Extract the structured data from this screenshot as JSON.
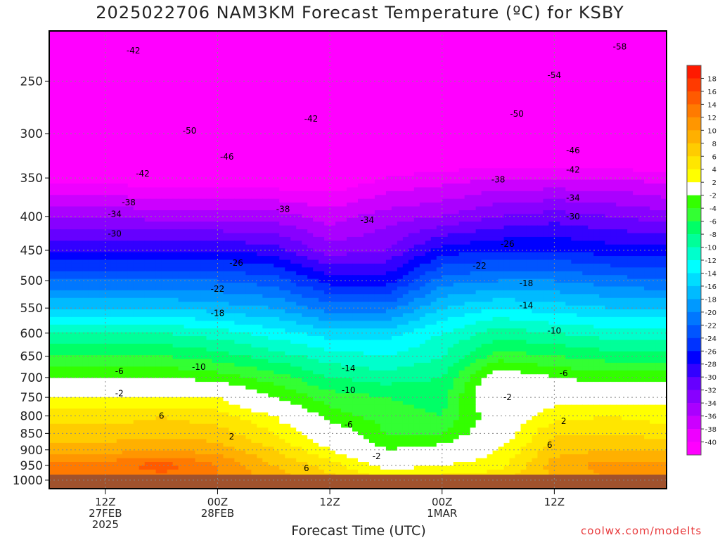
{
  "title": "2025022706 NAM3KM Forecast Temperature (ºC) for KSBY",
  "xlabel": "Forecast Time (UTC)",
  "credit": "coolwx.com/modelts",
  "chart_data": {
    "type": "heatmap",
    "title": "2025022706 NAM3KM Forecast Temperature (ºC) for KSBY",
    "xlabel": "Forecast Time (UTC)",
    "ylabel": "",
    "y_scale": "log",
    "y_reversed": true,
    "ylim": [
      1030,
      210
    ],
    "xlim": [
      "2025-02-27T06:00Z",
      "2025-03-02T00:00Z"
    ],
    "yticks": [
      250,
      300,
      350,
      400,
      450,
      500,
      550,
      600,
      650,
      700,
      750,
      800,
      850,
      900,
      950,
      1000
    ],
    "xticks": [
      {
        "time": "2025-02-27T12:00Z",
        "lines": [
          "12Z",
          "27FEB",
          "2025"
        ]
      },
      {
        "time": "2025-02-28T00:00Z",
        "lines": [
          "00Z",
          "28FEB"
        ]
      },
      {
        "time": "2025-02-28T12:00Z",
        "lines": [
          "12Z"
        ]
      },
      {
        "time": "2025-03-01T00:00Z",
        "lines": [
          "00Z",
          "1MAR"
        ]
      },
      {
        "time": "2025-03-01T12:00Z",
        "lines": [
          "12Z"
        ]
      }
    ],
    "grid": true,
    "legend_position": "right",
    "colorbar": {
      "labels": [
        "18",
        "16",
        "14",
        "12",
        "10",
        "8",
        "6",
        "4",
        "2",
        "-2",
        "-4",
        "-6",
        "-8",
        "-10",
        "-12",
        "-14",
        "-16",
        "-18",
        "-20",
        "-22",
        "-24",
        "-26",
        "-28",
        "-30",
        "-32",
        "-34",
        "-36",
        "-38",
        "-40"
      ],
      "colors": [
        "#ff1a00",
        "#ff3a00",
        "#ff5a00",
        "#ff7a00",
        "#ff9600",
        "#ffb000",
        "#ffcc00",
        "#ffe600",
        "#ffff00",
        "#ffffff",
        "#33ff00",
        "#33ff33",
        "#00ff66",
        "#00ff99",
        "#00ffcc",
        "#00ffff",
        "#00ddff",
        "#00bbff",
        "#0099ff",
        "#0077ff",
        "#0055ff",
        "#0033ff",
        "#0000ff",
        "#3300ff",
        "#6600ff",
        "#8800ff",
        "#aa00ff",
        "#cc00ff",
        "#ee00ff",
        "#ff00ff"
      ]
    },
    "series": [
      {
        "hours": [
          6,
          12,
          18,
          24,
          30,
          36,
          42,
          48,
          54,
          60,
          66
        ],
        "profiles": [
          [
            {
              "p": 1000,
              "t": 12
            },
            {
              "p": 950,
              "t": 13
            },
            {
              "p": 900,
              "t": 9
            },
            {
              "p": 850,
              "t": 7
            },
            {
              "p": 800,
              "t": 5
            },
            {
              "p": 750,
              "t": 2
            },
            {
              "p": 700,
              "t": -2
            },
            {
              "p": 650,
              "t": -6
            },
            {
              "p": 600,
              "t": -10
            },
            {
              "p": 550,
              "t": -16
            },
            {
              "p": 500,
              "t": -22
            },
            {
              "p": 450,
              "t": -28
            },
            {
              "p": 400,
              "t": -34
            },
            {
              "p": 350,
              "t": -41
            },
            {
              "p": 300,
              "t": -47
            },
            {
              "p": 250,
              "t": -52
            }
          ],
          [
            {
              "p": 1000,
              "t": 13
            },
            {
              "p": 950,
              "t": 15
            },
            {
              "p": 900,
              "t": 10
            },
            {
              "p": 850,
              "t": 7
            },
            {
              "p": 800,
              "t": 6
            },
            {
              "p": 750,
              "t": 2
            },
            {
              "p": 700,
              "t": -2
            },
            {
              "p": 650,
              "t": -6
            },
            {
              "p": 600,
              "t": -10
            },
            {
              "p": 550,
              "t": -16
            },
            {
              "p": 500,
              "t": -22
            },
            {
              "p": 450,
              "t": -28
            },
            {
              "p": 400,
              "t": -35
            },
            {
              "p": 350,
              "t": -42
            },
            {
              "p": 300,
              "t": -48
            },
            {
              "p": 250,
              "t": -52
            }
          ],
          [
            {
              "p": 1000,
              "t": 12
            },
            {
              "p": 950,
              "t": 12
            },
            {
              "p": 900,
              "t": 9
            },
            {
              "p": 850,
              "t": 7
            },
            {
              "p": 800,
              "t": 5
            },
            {
              "p": 750,
              "t": 2
            },
            {
              "p": 700,
              "t": -3
            },
            {
              "p": 650,
              "t": -7
            },
            {
              "p": 600,
              "t": -11
            },
            {
              "p": 550,
              "t": -17
            },
            {
              "p": 500,
              "t": -22
            },
            {
              "p": 450,
              "t": -28
            },
            {
              "p": 400,
              "t": -35
            },
            {
              "p": 350,
              "t": -42
            },
            {
              "p": 300,
              "t": -49
            },
            {
              "p": 250,
              "t": -53
            }
          ],
          [
            {
              "p": 1000,
              "t": 9
            },
            {
              "p": 950,
              "t": 8
            },
            {
              "p": 900,
              "t": 6
            },
            {
              "p": 850,
              "t": 4
            },
            {
              "p": 800,
              "t": 2
            },
            {
              "p": 750,
              "t": -2
            },
            {
              "p": 700,
              "t": -5
            },
            {
              "p": 650,
              "t": -9
            },
            {
              "p": 600,
              "t": -13
            },
            {
              "p": 550,
              "t": -18
            },
            {
              "p": 500,
              "t": -23
            },
            {
              "p": 450,
              "t": -29
            },
            {
              "p": 400,
              "t": -35
            },
            {
              "p": 350,
              "t": -42
            },
            {
              "p": 300,
              "t": -48
            },
            {
              "p": 250,
              "t": -53
            }
          ],
          [
            {
              "p": 1000,
              "t": 7
            },
            {
              "p": 950,
              "t": 5
            },
            {
              "p": 900,
              "t": 2
            },
            {
              "p": 850,
              "t": 0
            },
            {
              "p": 800,
              "t": -3
            },
            {
              "p": 750,
              "t": -5
            },
            {
              "p": 700,
              "t": -8
            },
            {
              "p": 650,
              "t": -11
            },
            {
              "p": 600,
              "t": -15
            },
            {
              "p": 550,
              "t": -21
            },
            {
              "p": 500,
              "t": -27
            },
            {
              "p": 450,
              "t": -33
            },
            {
              "p": 400,
              "t": -37
            },
            {
              "p": 350,
              "t": -42
            },
            {
              "p": 300,
              "t": -46
            },
            {
              "p": 250,
              "t": -50
            }
          ],
          [
            {
              "p": 1000,
              "t": 4
            },
            {
              "p": 950,
              "t": 1
            },
            {
              "p": 900,
              "t": -2
            },
            {
              "p": 850,
              "t": -4
            },
            {
              "p": 800,
              "t": -5
            },
            {
              "p": 750,
              "t": -6
            },
            {
              "p": 700,
              "t": -9
            },
            {
              "p": 650,
              "t": -12
            },
            {
              "p": 600,
              "t": -15
            },
            {
              "p": 550,
              "t": -21
            },
            {
              "p": 500,
              "t": -27
            },
            {
              "p": 450,
              "t": -32
            },
            {
              "p": 400,
              "t": -35
            },
            {
              "p": 350,
              "t": -40
            },
            {
              "p": 300,
              "t": -44
            },
            {
              "p": 250,
              "t": -50
            }
          ],
          [
            {
              "p": 1000,
              "t": 5
            },
            {
              "p": 950,
              "t": 2
            },
            {
              "p": 900,
              "t": -1
            },
            {
              "p": 850,
              "t": -4
            },
            {
              "p": 800,
              "t": -6
            },
            {
              "p": 750,
              "t": -7
            },
            {
              "p": 700,
              "t": -8
            },
            {
              "p": 650,
              "t": -10
            },
            {
              "p": 600,
              "t": -12
            },
            {
              "p": 550,
              "t": -16
            },
            {
              "p": 500,
              "t": -21
            },
            {
              "p": 450,
              "t": -27
            },
            {
              "p": 400,
              "t": -34
            },
            {
              "p": 350,
              "t": -39
            },
            {
              "p": 300,
              "t": -46
            },
            {
              "p": 250,
              "t": -52
            }
          ],
          [
            {
              "p": 1000,
              "t": 6
            },
            {
              "p": 950,
              "t": 3
            },
            {
              "p": 900,
              "t": 2
            },
            {
              "p": 850,
              "t": 0
            },
            {
              "p": 800,
              "t": 0
            },
            {
              "p": 750,
              "t": 2
            },
            {
              "p": 700,
              "t": 0
            },
            {
              "p": 650,
              "t": -5
            },
            {
              "p": 600,
              "t": -9
            },
            {
              "p": 550,
              "t": -14
            },
            {
              "p": 500,
              "t": -20
            },
            {
              "p": 450,
              "t": -26
            },
            {
              "p": 400,
              "t": -32
            },
            {
              "p": 350,
              "t": -38
            },
            {
              "p": 300,
              "t": -46
            },
            {
              "p": 250,
              "t": -54
            }
          ],
          [
            {
              "p": 1000,
              "t": 8
            },
            {
              "p": 950,
              "t": 9
            },
            {
              "p": 900,
              "t": 7
            },
            {
              "p": 850,
              "t": 6
            },
            {
              "p": 800,
              "t": 3
            },
            {
              "p": 750,
              "t": 1
            },
            {
              "p": 700,
              "t": -2
            },
            {
              "p": 650,
              "t": -6
            },
            {
              "p": 600,
              "t": -10
            },
            {
              "p": 550,
              "t": -15
            },
            {
              "p": 500,
              "t": -20
            },
            {
              "p": 450,
              "t": -26
            },
            {
              "p": 400,
              "t": -31
            },
            {
              "p": 350,
              "t": -38
            },
            {
              "p": 300,
              "t": -46
            },
            {
              "p": 250,
              "t": -55
            }
          ],
          [
            {
              "p": 1000,
              "t": 10
            },
            {
              "p": 950,
              "t": 11
            },
            {
              "p": 900,
              "t": 8
            },
            {
              "p": 850,
              "t": 6
            },
            {
              "p": 800,
              "t": 4
            },
            {
              "p": 750,
              "t": 1
            },
            {
              "p": 700,
              "t": -3
            },
            {
              "p": 650,
              "t": -7
            },
            {
              "p": 600,
              "t": -11
            },
            {
              "p": 550,
              "t": -16
            },
            {
              "p": 500,
              "t": -21
            },
            {
              "p": 450,
              "t": -27
            },
            {
              "p": 400,
              "t": -32
            },
            {
              "p": 350,
              "t": -38
            },
            {
              "p": 300,
              "t": -47
            },
            {
              "p": 250,
              "t": -56
            }
          ],
          [
            {
              "p": 1000,
              "t": 12
            },
            {
              "p": 950,
              "t": 11
            },
            {
              "p": 900,
              "t": 8
            },
            {
              "p": 850,
              "t": 5
            },
            {
              "p": 800,
              "t": 3
            },
            {
              "p": 750,
              "t": 1
            },
            {
              "p": 700,
              "t": -3
            },
            {
              "p": 650,
              "t": -7
            },
            {
              "p": 600,
              "t": -11
            },
            {
              "p": 550,
              "t": -16
            },
            {
              "p": 500,
              "t": -22
            },
            {
              "p": 450,
              "t": -27
            },
            {
              "p": 400,
              "t": -33
            },
            {
              "p": 350,
              "t": -39
            },
            {
              "p": 300,
              "t": -48
            },
            {
              "p": 250,
              "t": -56
            }
          ]
        ]
      }
    ],
    "contour_labels": [
      {
        "text": "-42",
        "h": 9,
        "p": 225
      },
      {
        "text": "-50",
        "h": 15,
        "p": 297
      },
      {
        "text": "-42",
        "h": 10,
        "p": 345
      },
      {
        "text": "-46",
        "h": 19,
        "p": 325
      },
      {
        "text": "-38",
        "h": 8.5,
        "p": 381
      },
      {
        "text": "-34",
        "h": 7,
        "p": 397
      },
      {
        "text": "-30",
        "h": 7,
        "p": 425
      },
      {
        "text": "-26",
        "h": 20,
        "p": 470
      },
      {
        "text": "-22",
        "h": 18,
        "p": 515
      },
      {
        "text": "-18",
        "h": 18,
        "p": 560
      },
      {
        "text": "-10",
        "h": 16,
        "p": 675
      },
      {
        "text": "-6",
        "h": 7.5,
        "p": 685
      },
      {
        "text": "-2",
        "h": 7.5,
        "p": 740
      },
      {
        "text": "6",
        "h": 12,
        "p": 800
      },
      {
        "text": "2",
        "h": 19.5,
        "p": 860
      },
      {
        "text": "-42",
        "h": 28,
        "p": 285
      },
      {
        "text": "-38",
        "h": 25,
        "p": 390
      },
      {
        "text": "-34",
        "h": 34,
        "p": 405
      },
      {
        "text": "-14",
        "h": 32,
        "p": 678
      },
      {
        "text": "-10",
        "h": 32,
        "p": 732
      },
      {
        "text": "-6",
        "h": 32,
        "p": 825
      },
      {
        "text": "-2",
        "h": 35,
        "p": 920
      },
      {
        "text": "6",
        "h": 27.5,
        "p": 960
      },
      {
        "text": "-38",
        "h": 48,
        "p": 352
      },
      {
        "text": "-54",
        "h": 54,
        "p": 245
      },
      {
        "text": "-50",
        "h": 50,
        "p": 280
      },
      {
        "text": "-46",
        "h": 56,
        "p": 318
      },
      {
        "text": "-42",
        "h": 56,
        "p": 340
      },
      {
        "text": "-58",
        "h": 61,
        "p": 222
      },
      {
        "text": "-34",
        "h": 56,
        "p": 375
      },
      {
        "text": "-30",
        "h": 56,
        "p": 400
      },
      {
        "text": "-26",
        "h": 49,
        "p": 440
      },
      {
        "text": "-22",
        "h": 46,
        "p": 475
      },
      {
        "text": "-18",
        "h": 51,
        "p": 505
      },
      {
        "text": "-14",
        "h": 51,
        "p": 545
      },
      {
        "text": "-10",
        "h": 54,
        "p": 595
      },
      {
        "text": "-6",
        "h": 55,
        "p": 690
      },
      {
        "text": "-2",
        "h": 49,
        "p": 750
      },
      {
        "text": "2",
        "h": 55,
        "p": 815
      },
      {
        "text": "6",
        "h": 53.5,
        "p": 885
      }
    ]
  }
}
